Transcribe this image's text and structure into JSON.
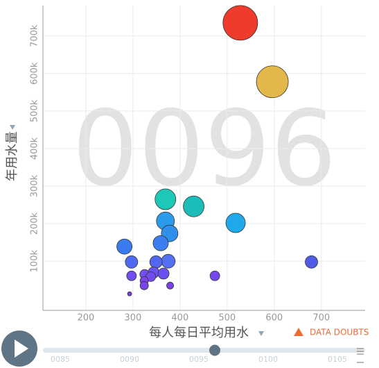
{
  "chart_data": {
    "type": "bubble",
    "watermark": "0096",
    "x_label": "每人每日平均用水",
    "y_label": "年用水量",
    "note": "DATA DOUBTS",
    "xlim": [
      109,
      793
    ],
    "xticks": [
      200,
      300,
      400,
      500,
      600,
      700
    ],
    "ylim": [
      -31000,
      781000
    ],
    "yticks": [
      {
        "value": 100000,
        "label": "100k"
      },
      {
        "value": 200000,
        "label": "200k"
      },
      {
        "value": 300000,
        "label": "300k"
      },
      {
        "value": 400000,
        "label": "400k"
      },
      {
        "value": 500000,
        "label": "500k"
      },
      {
        "value": 600000,
        "label": "600k"
      },
      {
        "value": 700000,
        "label": "700k"
      }
    ],
    "grid": true,
    "x": [
      528,
      596,
      369,
      429,
      518,
      369,
      378,
      359,
      282,
      375,
      297,
      349,
      679,
      344,
      365,
      325,
      338,
      297,
      474,
      324,
      324,
      379,
      293
    ],
    "y": [
      735000,
      578000,
      265000,
      246000,
      202000,
      207000,
      174000,
      148000,
      139000,
      100000,
      98000,
      98000,
      98000,
      70000,
      67000,
      65000,
      59000,
      61000,
      61000,
      48000,
      35000,
      35000,
      13000
    ],
    "size": [
      625,
      529,
      225,
      225,
      196,
      169,
      144,
      121,
      121,
      100,
      81,
      81,
      81,
      64,
      64,
      49,
      49,
      49,
      49,
      36,
      36,
      25,
      9
    ],
    "colors": [
      "#ee3b2c",
      "#e3b84a",
      "#1ec8b6",
      "#1cbcb8",
      "#1fa9ea",
      "#2a9be9",
      "#2f8fea",
      "#3a7ef0",
      "#3b7bf0",
      "#5470f0",
      "#4f6af0",
      "#5266ef",
      "#4f5de6",
      "#6a54f0",
      "#6a52ef",
      "#7050ee",
      "#724ded",
      "#704fee",
      "#7449ec",
      "#7a46ea",
      "#7a44ea",
      "#7c42e9",
      "#8038e6"
    ],
    "timeline": {
      "labels": [
        "0085",
        "0090",
        "0095",
        "0100",
        "0105"
      ]
    }
  }
}
